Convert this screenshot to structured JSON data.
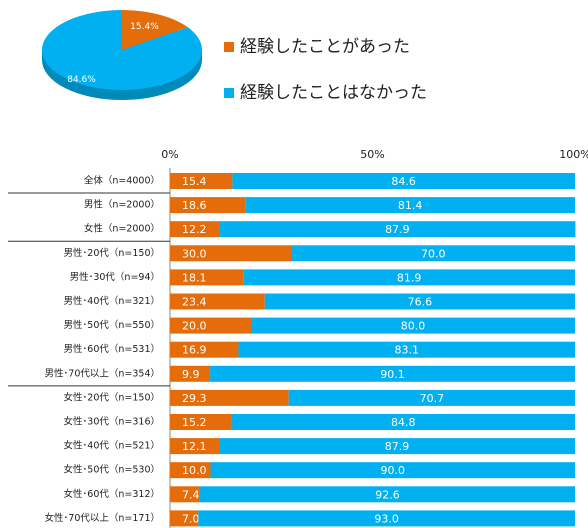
{
  "chart_data": [
    {
      "type": "pie",
      "series": [
        {
          "name": "経験したことがあった",
          "color": "#e46c0a"
        },
        {
          "name": "経験したことはなかった",
          "color": "#00b0f0"
        }
      ],
      "values": [
        15.4,
        84.6
      ],
      "value_labels": [
        "15.4%",
        "84.6%"
      ]
    },
    {
      "type": "stacked-bar-horizontal",
      "categories": [
        "全体（n=4000）",
        "男性（n=2000）",
        "女性（n=2000）",
        "男性･20代（n=150）",
        "男性･30代（n=94）",
        "男性･40代（n=321）",
        "男性･50代（n=550）",
        "男性･60代（n=531）",
        "男性･70代以上（n=354）",
        "女性･20代（n=150）",
        "女性･30代（n=316）",
        "女性･40代（n=521）",
        "女性･50代（n=530）",
        "女性･60代（n=312）",
        "女性･70代以上（n=171）"
      ],
      "series": [
        {
          "name": "経験したことがあった",
          "color": "#e46c0a",
          "values": [
            15.4,
            18.6,
            12.2,
            30.0,
            18.1,
            23.4,
            20.0,
            16.9,
            9.9,
            29.3,
            15.2,
            12.1,
            10.0,
            7.4,
            7.0
          ],
          "value_labels": [
            "15.4",
            "18.6",
            "12.2",
            "30.0",
            "18.1",
            "23.4",
            "20.0",
            "16.9",
            "9.9",
            "29.3",
            "15.2",
            "12.1",
            "10.0",
            "7.4",
            "7.0"
          ]
        },
        {
          "name": "経験したことはなかった",
          "color": "#00b0f0",
          "values": [
            84.6,
            81.4,
            87.9,
            70.0,
            81.9,
            76.6,
            80.0,
            83.1,
            90.1,
            70.7,
            84.8,
            87.9,
            90.0,
            92.6,
            93.0
          ],
          "value_labels": [
            "84.6",
            "81.4",
            "87.9",
            "70.0",
            "81.9",
            "76.6",
            "80.0",
            "83.1",
            "90.1",
            "70.7",
            "84.8",
            "87.9",
            "90.0",
            "92.6",
            "93.0"
          ]
        }
      ],
      "xlim": [
        0,
        100
      ],
      "xticks": [
        {
          "value": 0,
          "label": "0%"
        },
        {
          "value": 50,
          "label": "50%"
        },
        {
          "value": 100,
          "label": "100%"
        }
      ]
    }
  ]
}
